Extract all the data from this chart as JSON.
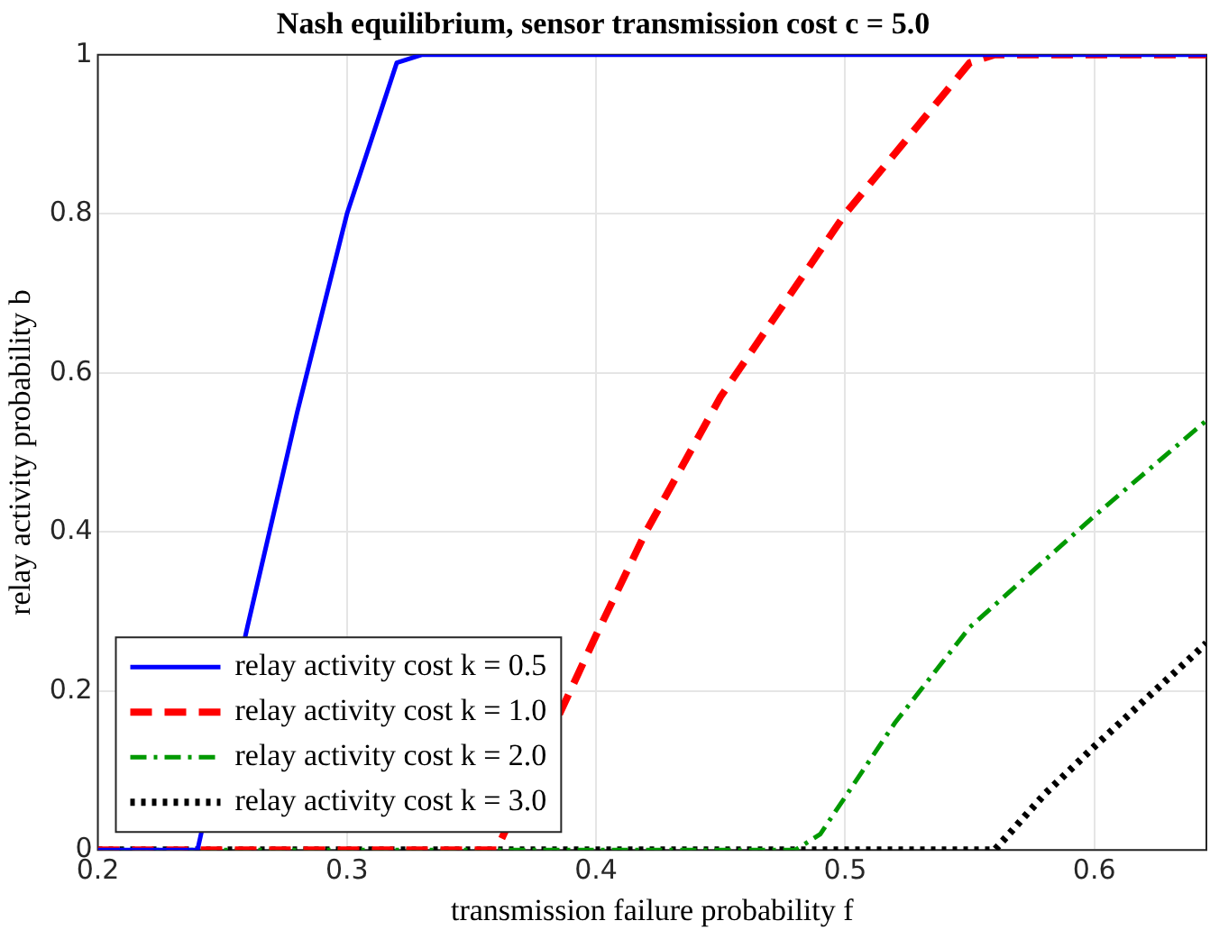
{
  "chart_data": {
    "type": "line",
    "title": "Nash equilibrium, sensor transmission cost c = 5.0",
    "xlabel": "transmission failure probability f",
    "ylabel": "relay activity probability b",
    "xlim": [
      0.2,
      0.645
    ],
    "xticks": [
      0.2,
      0.3,
      0.4,
      0.5,
      0.6
    ],
    "ylim": [
      0,
      1
    ],
    "yticks": [
      0,
      0.2,
      0.4,
      0.6,
      0.8,
      1
    ],
    "grid": true,
    "legend": "bottom left",
    "marker": "none",
    "series": [
      {
        "name": "relay activity cost k = 0.5",
        "color": "#0000ff",
        "line_style": "solid",
        "x": [
          0.2,
          0.24,
          0.26,
          0.28,
          0.3,
          0.32,
          0.33,
          0.645
        ],
        "values": [
          0,
          0,
          0.28,
          0.55,
          0.8,
          0.99,
          1,
          1
        ]
      },
      {
        "name": "relay activity cost k = 1.0",
        "color": "#ff0000",
        "line_style": "dashed",
        "x": [
          0.2,
          0.36,
          0.4,
          0.42,
          0.45,
          0.5,
          0.55,
          0.56,
          0.645
        ],
        "values": [
          0,
          0,
          0.27,
          0.4,
          0.57,
          0.8,
          0.99,
          1,
          1
        ]
      },
      {
        "name": "relay activity cost k = 2.0",
        "color": "#009900",
        "line_style": "dashdot",
        "x": [
          0.2,
          0.48,
          0.49,
          0.52,
          0.55,
          0.6,
          0.645
        ],
        "values": [
          0,
          0,
          0.02,
          0.16,
          0.28,
          0.42,
          0.54
        ]
      },
      {
        "name": "relay activity cost k = 3.0",
        "color": "#000000",
        "line_style": "dotted",
        "x": [
          0.2,
          0.56,
          0.58,
          0.6,
          0.645
        ],
        "values": [
          0,
          0,
          0.07,
          0.13,
          0.26
        ]
      }
    ]
  }
}
